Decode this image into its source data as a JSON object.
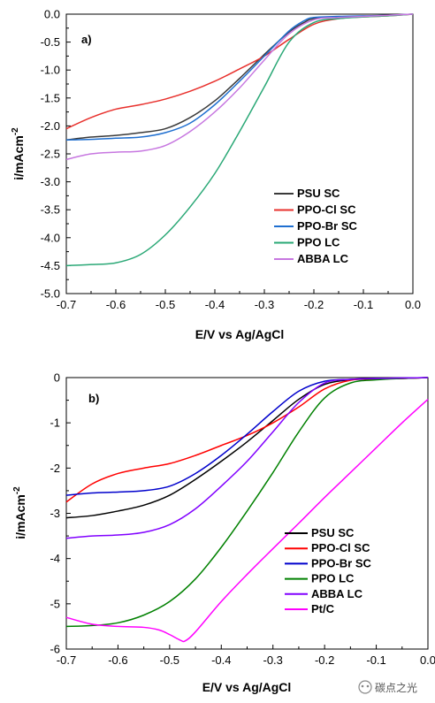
{
  "chart_data": [
    {
      "type": "line",
      "panel_label": "a)",
      "xlabel": "E/V vs Ag/AgCl",
      "ylabel": "i/mAcm",
      "ylabel_sup": "-2",
      "xlim": [
        -0.7,
        0.0
      ],
      "ylim": [
        -5.0,
        0.0
      ],
      "xticks": [
        -0.7,
        -0.6,
        -0.5,
        -0.4,
        -0.3,
        -0.2,
        -0.1,
        0.0
      ],
      "xtick_labels": [
        "-0.7",
        "-0.6",
        "-0.5",
        "-0.4",
        "-0.3",
        "-0.2",
        "-0.1",
        "0.0"
      ],
      "yticks": [
        0.0,
        -0.5,
        -1.0,
        -1.5,
        -2.0,
        -2.5,
        -3.0,
        -3.5,
        -4.0,
        -4.5,
        -5.0
      ],
      "ytick_labels": [
        "0.0",
        "-0.5",
        "-1.0",
        "-1.5",
        "-2.0",
        "-2.5",
        "-3.0",
        "-3.5",
        "-4.0",
        "-4.5",
        "-5.0"
      ],
      "grid": false,
      "legend_position": "lower-right",
      "series": [
        {
          "name": "PSU SC",
          "color": "#3a3a3a",
          "x": [
            -0.7,
            -0.65,
            -0.6,
            -0.55,
            -0.5,
            -0.45,
            -0.4,
            -0.35,
            -0.3,
            -0.25,
            -0.22,
            -0.2,
            -0.15,
            -0.1,
            -0.05,
            0.0
          ],
          "y": [
            -2.25,
            -2.2,
            -2.17,
            -2.12,
            -2.05,
            -1.85,
            -1.55,
            -1.15,
            -0.72,
            -0.32,
            -0.15,
            -0.08,
            -0.05,
            -0.04,
            -0.02,
            0.0
          ]
        },
        {
          "name": "PPO-Cl SC",
          "color": "#e8302c",
          "x": [
            -0.7,
            -0.65,
            -0.6,
            -0.55,
            -0.5,
            -0.45,
            -0.4,
            -0.35,
            -0.3,
            -0.25,
            -0.2,
            -0.15,
            -0.1,
            -0.05,
            0.0
          ],
          "y": [
            -2.05,
            -1.85,
            -1.7,
            -1.62,
            -1.52,
            -1.38,
            -1.2,
            -0.98,
            -0.75,
            -0.45,
            -0.18,
            -0.08,
            -0.05,
            -0.03,
            0.0
          ]
        },
        {
          "name": "PPO-Br SC",
          "color": "#1f6fd0",
          "x": [
            -0.7,
            -0.65,
            -0.6,
            -0.55,
            -0.5,
            -0.45,
            -0.4,
            -0.35,
            -0.3,
            -0.25,
            -0.22,
            -0.2,
            -0.15,
            -0.1,
            -0.05,
            0.0
          ],
          "y": [
            -2.25,
            -2.24,
            -2.22,
            -2.2,
            -2.12,
            -1.95,
            -1.62,
            -1.2,
            -0.75,
            -0.3,
            -0.12,
            -0.06,
            -0.04,
            -0.03,
            -0.02,
            0.0
          ]
        },
        {
          "name": "PPO LC",
          "color": "#2aa876",
          "x": [
            -0.7,
            -0.65,
            -0.6,
            -0.55,
            -0.5,
            -0.45,
            -0.4,
            -0.35,
            -0.3,
            -0.25,
            -0.2,
            -0.15,
            -0.1,
            -0.05,
            0.0
          ],
          "y": [
            -4.5,
            -4.48,
            -4.45,
            -4.3,
            -3.95,
            -3.45,
            -2.85,
            -2.1,
            -1.3,
            -0.5,
            -0.15,
            -0.08,
            -0.05,
            -0.03,
            0.0
          ]
        },
        {
          "name": "ABBA LC",
          "color": "#c777e0",
          "x": [
            -0.7,
            -0.65,
            -0.6,
            -0.55,
            -0.5,
            -0.45,
            -0.4,
            -0.35,
            -0.3,
            -0.25,
            -0.2,
            -0.15,
            -0.1,
            -0.05,
            0.0
          ],
          "y": [
            -2.6,
            -2.5,
            -2.47,
            -2.45,
            -2.35,
            -2.1,
            -1.75,
            -1.32,
            -0.82,
            -0.35,
            -0.1,
            -0.06,
            -0.04,
            -0.02,
            0.0
          ]
        }
      ]
    },
    {
      "type": "line",
      "panel_label": "b)",
      "xlabel": "E/V vs Ag/AgCl",
      "ylabel": "i/mAcm",
      "ylabel_sup": "-2",
      "xlim": [
        -0.7,
        0.0
      ],
      "ylim": [
        -6.0,
        0.0
      ],
      "xticks": [
        -0.7,
        -0.6,
        -0.5,
        -0.4,
        -0.3,
        -0.2,
        -0.1,
        0.0
      ],
      "xtick_labels": [
        "-0.7",
        "-0.6",
        "-0.5",
        "-0.4",
        "-0.3",
        "-0.2",
        "-0.1",
        "0.0"
      ],
      "yticks": [
        0,
        -1,
        -2,
        -3,
        -4,
        -5,
        -6
      ],
      "ytick_labels": [
        "0",
        "-1",
        "-2",
        "-3",
        "-4",
        "-5",
        "-6"
      ],
      "grid": false,
      "legend_position": "lower-right",
      "series": [
        {
          "name": "PSU SC",
          "color": "#000000",
          "x": [
            -0.7,
            -0.65,
            -0.6,
            -0.55,
            -0.5,
            -0.45,
            -0.4,
            -0.35,
            -0.3,
            -0.25,
            -0.2,
            -0.15,
            -0.1,
            -0.05,
            0.0
          ],
          "y": [
            -3.1,
            -3.05,
            -2.95,
            -2.82,
            -2.6,
            -2.25,
            -1.85,
            -1.42,
            -0.95,
            -0.48,
            -0.15,
            -0.05,
            -0.03,
            -0.02,
            0.0
          ]
        },
        {
          "name": "PPO-Cl SC",
          "color": "#ff0000",
          "x": [
            -0.7,
            -0.65,
            -0.6,
            -0.55,
            -0.5,
            -0.45,
            -0.4,
            -0.35,
            -0.3,
            -0.25,
            -0.2,
            -0.15,
            -0.1,
            -0.05,
            0.0
          ],
          "y": [
            -2.75,
            -2.35,
            -2.12,
            -2.0,
            -1.9,
            -1.72,
            -1.5,
            -1.28,
            -1.0,
            -0.65,
            -0.25,
            -0.06,
            -0.03,
            -0.02,
            0.0
          ]
        },
        {
          "name": "PPO-Br SC",
          "color": "#0000cc",
          "x": [
            -0.7,
            -0.65,
            -0.6,
            -0.55,
            -0.5,
            -0.45,
            -0.4,
            -0.35,
            -0.3,
            -0.25,
            -0.2,
            -0.15,
            -0.1,
            -0.05,
            0.0
          ],
          "y": [
            -2.6,
            -2.55,
            -2.53,
            -2.5,
            -2.4,
            -2.12,
            -1.72,
            -1.25,
            -0.75,
            -0.3,
            -0.08,
            -0.04,
            -0.02,
            -0.01,
            0.0
          ]
        },
        {
          "name": "PPO LC",
          "color": "#008000",
          "x": [
            -0.7,
            -0.65,
            -0.6,
            -0.55,
            -0.5,
            -0.45,
            -0.4,
            -0.35,
            -0.3,
            -0.25,
            -0.2,
            -0.15,
            -0.1,
            -0.05,
            0.0
          ],
          "y": [
            -5.5,
            -5.48,
            -5.42,
            -5.25,
            -4.95,
            -4.45,
            -3.75,
            -2.95,
            -2.1,
            -1.2,
            -0.45,
            -0.12,
            -0.05,
            -0.02,
            0.0
          ]
        },
        {
          "name": "ABBA LC",
          "color": "#8000ff",
          "x": [
            -0.7,
            -0.65,
            -0.6,
            -0.55,
            -0.5,
            -0.45,
            -0.4,
            -0.35,
            -0.3,
            -0.25,
            -0.2,
            -0.15,
            -0.1,
            -0.05,
            0.0
          ],
          "y": [
            -3.55,
            -3.5,
            -3.48,
            -3.42,
            -3.25,
            -2.9,
            -2.4,
            -1.85,
            -1.2,
            -0.55,
            -0.12,
            -0.04,
            -0.02,
            -0.01,
            0.0
          ]
        },
        {
          "name": "Pt/C",
          "color": "#ff00ff",
          "x": [
            -0.7,
            -0.65,
            -0.6,
            -0.55,
            -0.52,
            -0.5,
            -0.48,
            -0.47,
            -0.45,
            -0.4,
            -0.35,
            -0.3,
            -0.25,
            -0.2,
            -0.15,
            -0.1,
            -0.05,
            0.0
          ],
          "y": [
            -5.3,
            -5.45,
            -5.5,
            -5.52,
            -5.58,
            -5.68,
            -5.8,
            -5.82,
            -5.62,
            -4.95,
            -4.35,
            -3.78,
            -3.22,
            -2.65,
            -2.1,
            -1.55,
            -1.0,
            -0.48
          ]
        }
      ]
    }
  ],
  "watermark": {
    "text": "碳点之光"
  }
}
